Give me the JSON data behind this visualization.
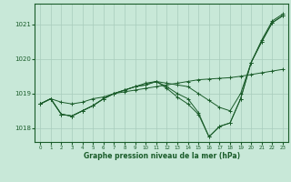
{
  "xlabel": "Graphe pression niveau de la mer (hPa)",
  "bg_color": "#c8e8d8",
  "grid_color": "#a8ccbc",
  "line_color": "#1a5c2a",
  "ylim": [
    1017.6,
    1021.6
  ],
  "xlim": [
    -0.5,
    23.5
  ],
  "yticks": [
    1018,
    1019,
    1020,
    1021
  ],
  "xticks": [
    0,
    1,
    2,
    3,
    4,
    5,
    6,
    7,
    8,
    9,
    10,
    11,
    12,
    13,
    14,
    15,
    16,
    17,
    18,
    19,
    20,
    21,
    22,
    23
  ],
  "series": [
    [
      1018.7,
      1018.85,
      1018.75,
      1018.7,
      1018.75,
      1018.85,
      1018.9,
      1019.0,
      1019.05,
      1019.1,
      1019.15,
      1019.2,
      1019.25,
      1019.3,
      1019.35,
      1019.4,
      1019.42,
      1019.44,
      1019.46,
      1019.5,
      1019.55,
      1019.6,
      1019.65,
      1019.7
    ],
    [
      1018.7,
      1018.85,
      1018.4,
      1018.35,
      1018.5,
      1018.65,
      1018.85,
      1019.0,
      1019.1,
      1019.2,
      1019.3,
      1019.35,
      1019.3,
      1019.25,
      1019.2,
      1019.0,
      1018.8,
      1018.6,
      1018.5,
      1019.0,
      1019.9,
      1020.55,
      1021.1,
      1021.3
    ],
    [
      1018.7,
      1018.85,
      1018.4,
      1018.35,
      1018.5,
      1018.65,
      1018.85,
      1019.0,
      1019.1,
      1019.2,
      1019.25,
      1019.35,
      1019.2,
      1019.0,
      1018.85,
      1018.45,
      1017.75,
      1018.05,
      1018.15,
      1018.85,
      1019.9,
      1020.5,
      1021.05,
      1021.25
    ],
    [
      1018.7,
      1018.85,
      1018.4,
      1018.35,
      1018.5,
      1018.65,
      1018.85,
      1019.0,
      1019.1,
      1019.2,
      1019.25,
      1019.35,
      1019.15,
      1018.9,
      1018.7,
      1018.4,
      1017.75,
      1018.05,
      1018.15,
      1018.85,
      1019.9,
      1020.5,
      1021.05,
      1021.25
    ]
  ]
}
